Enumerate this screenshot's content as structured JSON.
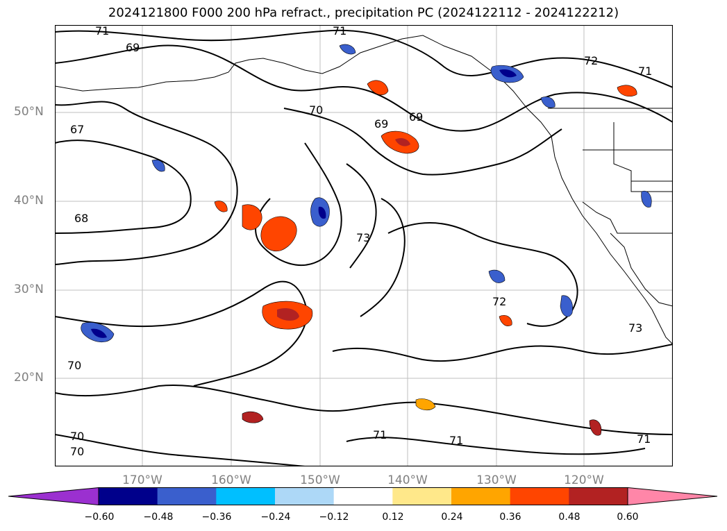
{
  "title": "2024121800 F000 200 hPa refract., precipitation PC (2024122112 - 2024122212)",
  "lat_labels": [
    "50°N",
    "40°N",
    "30°N",
    "20°N"
  ],
  "lon_labels": [
    "170°W",
    "160°W",
    "150°W",
    "140°W",
    "130°W",
    "120°W"
  ],
  "contour_labels": [
    "71",
    "69",
    "71",
    "72",
    "71",
    "67",
    "70",
    "69",
    "69",
    "68",
    "73",
    "72",
    "73",
    "70",
    "70",
    "70",
    "71",
    "71",
    "71"
  ],
  "colorbar": {
    "ticks": [
      "−0.60",
      "−0.48",
      "−0.36",
      "−0.24",
      "−0.12",
      "0.12",
      "0.24",
      "0.36",
      "0.48",
      "0.60"
    ],
    "colors": [
      "#9b30d0",
      "#00008b",
      "#3a5fcd",
      "#00bfff",
      "#add8f7",
      "#ffffff",
      "#ffe88a",
      "#ffa500",
      "#ff4500",
      "#b22222",
      "#ff86a8"
    ]
  }
}
